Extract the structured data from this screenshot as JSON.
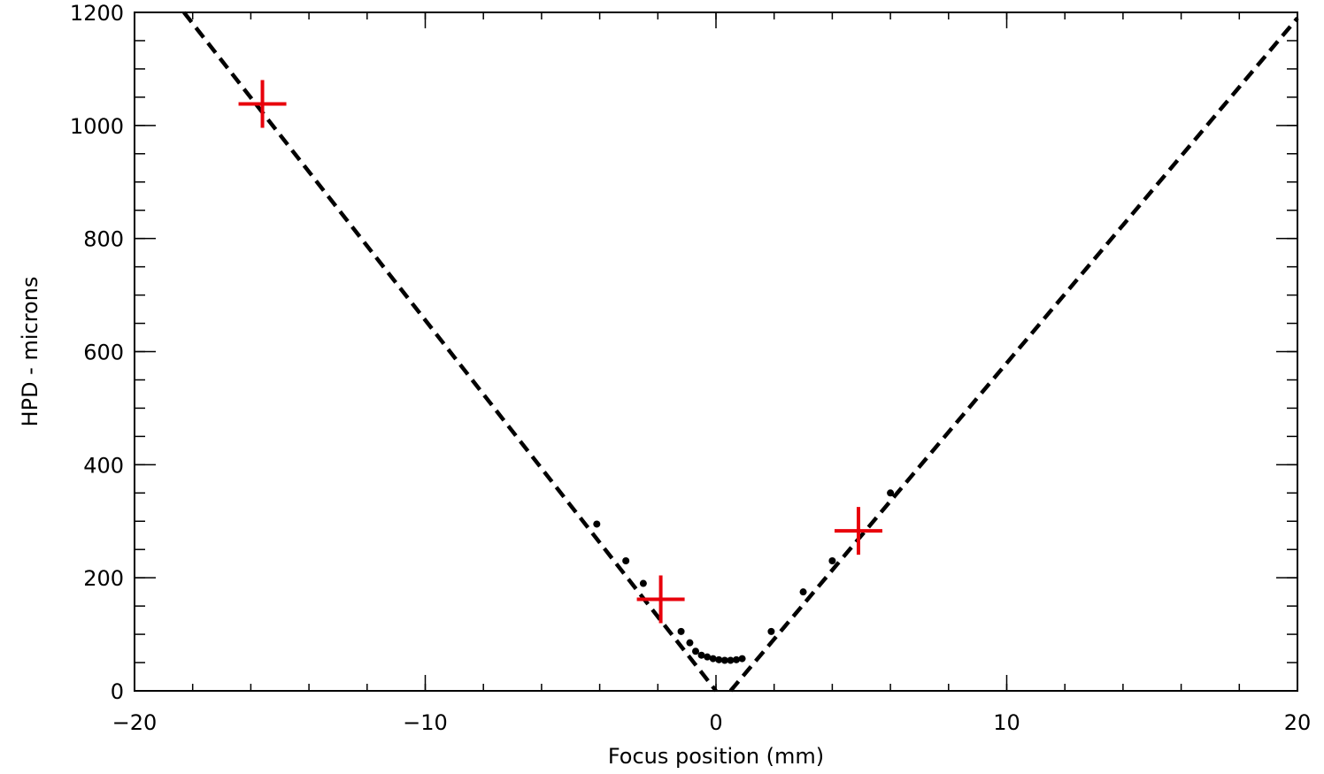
{
  "chart_data": {
    "type": "scatter",
    "title": "",
    "xlabel": "Focus position (mm)",
    "ylabel": "HPD - microns",
    "xlim": [
      -20,
      20
    ],
    "ylim": [
      0,
      1200
    ],
    "x_ticks": [
      -20,
      -10,
      0,
      10,
      20
    ],
    "x_tick_labels": [
      "−20",
      "−10",
      "0",
      "10",
      "20"
    ],
    "y_ticks": [
      0,
      200,
      400,
      600,
      800,
      1000,
      1200
    ],
    "y_tick_labels": [
      "0",
      "200",
      "400",
      "600",
      "800",
      "1000",
      "1200"
    ],
    "grid": false,
    "legend": "none",
    "series": [
      {
        "marker": "cross",
        "color": "#e8000b",
        "points": [
          {
            "x": -15.6,
            "y": 1038
          },
          {
            "x": -1.9,
            "y": 162
          },
          {
            "x": 4.9,
            "y": 283
          }
        ]
      },
      {
        "marker": "dot",
        "color": "#000000",
        "points": [
          {
            "x": -4.1,
            "y": 295
          },
          {
            "x": -3.1,
            "y": 230
          },
          {
            "x": -2.5,
            "y": 190
          },
          {
            "x": -1.2,
            "y": 105
          },
          {
            "x": -0.9,
            "y": 85
          },
          {
            "x": -0.7,
            "y": 70
          },
          {
            "x": -0.5,
            "y": 63
          },
          {
            "x": -0.3,
            "y": 60
          },
          {
            "x": -0.1,
            "y": 57
          },
          {
            "x": 0.1,
            "y": 55
          },
          {
            "x": 0.3,
            "y": 54
          },
          {
            "x": 0.5,
            "y": 54
          },
          {
            "x": 0.7,
            "y": 55
          },
          {
            "x": 0.9,
            "y": 57
          },
          {
            "x": 1.9,
            "y": 105
          },
          {
            "x": 3.0,
            "y": 175
          },
          {
            "x": 4.0,
            "y": 230
          },
          {
            "x": 6.0,
            "y": 350
          }
        ]
      },
      {
        "line_style": "dashed",
        "color": "#000000",
        "points": [
          {
            "x": -18.3,
            "y": 1200
          },
          {
            "x": 0.0,
            "y": 0
          }
        ]
      },
      {
        "line_style": "dashed",
        "color": "#000000",
        "points": [
          {
            "x": 0.5,
            "y": 0
          },
          {
            "x": 20.0,
            "y": 1190
          }
        ]
      }
    ]
  }
}
